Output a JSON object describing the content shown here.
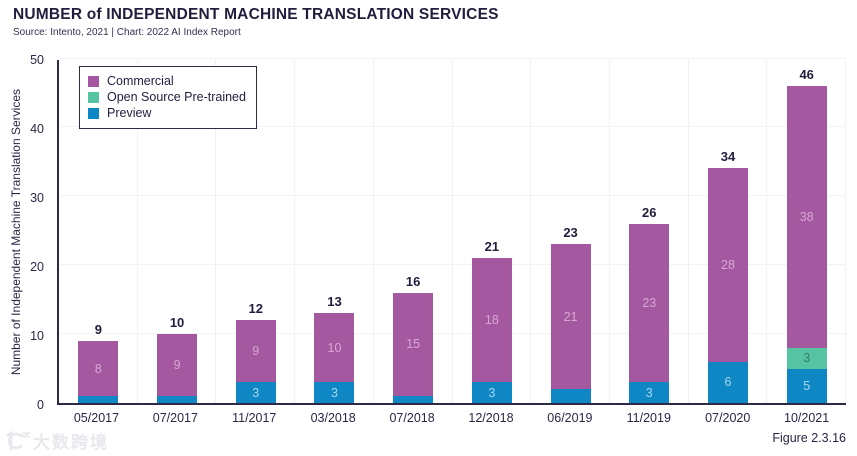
{
  "header": {
    "title": "NUMBER of INDEPENDENT MACHINE TRANSLATION SERVICES",
    "source_line": "Source: Intento, 2021 | Chart: 2022 AI Index Report"
  },
  "figure_label": "Figure 2.3.16",
  "watermark": {
    "logo": "100-logo",
    "text": "大数跨境"
  },
  "colors": {
    "commercial": "#a4589f",
    "open_source": "#56c3a3",
    "preview": "#0f87c5",
    "commercial_label": "#d9a7d4",
    "open_source_label": "#2e7f66",
    "preview_label": "#a5d6ed",
    "axis": "#2e2945",
    "grid": "#f2f1f5",
    "text_dark": "#221d3d"
  },
  "chart_data": {
    "type": "bar",
    "stacked": true,
    "title": "NUMBER of INDEPENDENT MACHINE TRANSLATION SERVICES",
    "categories": [
      "05/2017",
      "07/2017",
      "11/2017",
      "03/2018",
      "07/2018",
      "12/2018",
      "06/2019",
      "11/2019",
      "07/2020",
      "10/2021"
    ],
    "series": [
      {
        "name": "Commercial",
        "color_key": "commercial",
        "label_color_key": "commercial_label",
        "values": [
          8,
          9,
          9,
          10,
          15,
          18,
          21,
          23,
          28,
          38
        ]
      },
      {
        "name": "Open Source Pre-trained",
        "color_key": "open_source",
        "label_color_key": "open_source_label",
        "values": [
          0,
          0,
          0,
          0,
          0,
          0,
          0,
          0,
          0,
          3
        ]
      },
      {
        "name": "Preview",
        "color_key": "preview",
        "label_color_key": "preview_label",
        "values": [
          1,
          1,
          3,
          3,
          1,
          3,
          2,
          3,
          6,
          5
        ]
      }
    ],
    "totals": [
      9,
      10,
      12,
      13,
      16,
      21,
      23,
      26,
      34,
      46
    ],
    "xlabel": "",
    "ylabel": "Number of Independent Machine Translation Services",
    "ylim": [
      0,
      50
    ],
    "yticks": [
      0,
      10,
      20,
      30,
      40,
      50
    ],
    "grid": true,
    "legend_position": "top-left",
    "legend_order": [
      "Commercial",
      "Open Source Pre-trained",
      "Preview"
    ]
  }
}
